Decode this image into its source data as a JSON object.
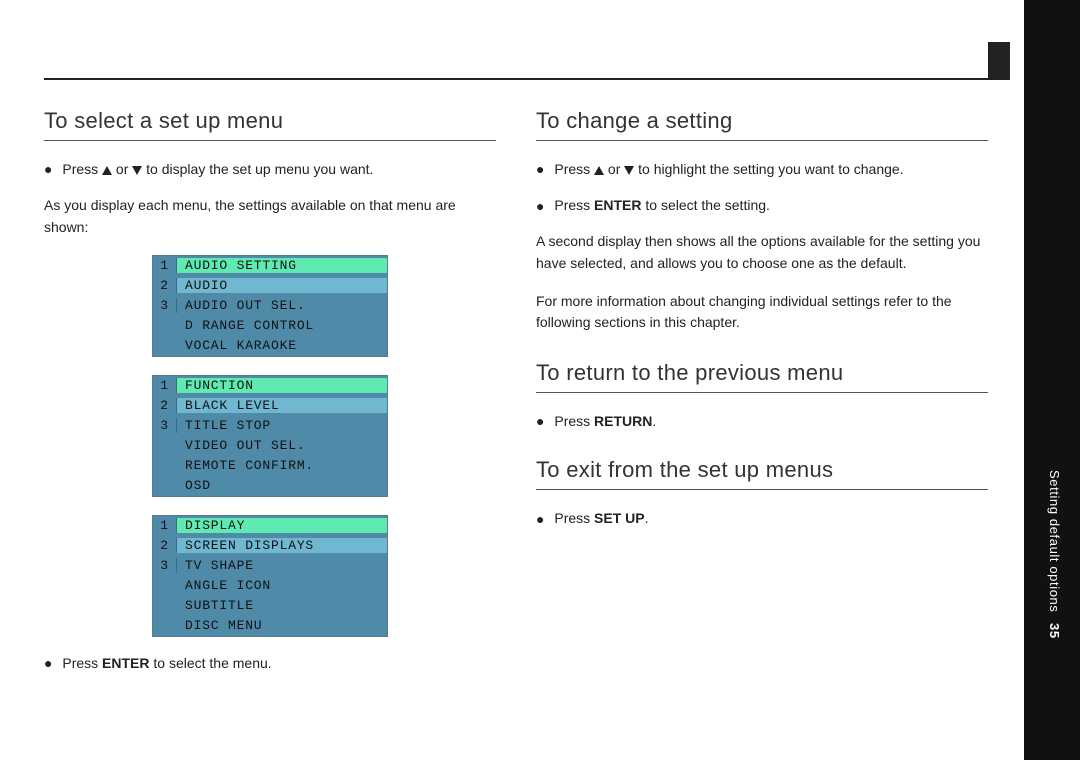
{
  "page_number": "35",
  "side_label_strong": "Setting default options",
  "left": {
    "h_select": "To select a set up menu",
    "p_press_display": " to display the set up menu you want.",
    "p_as_you": "As you display each menu, the settings available on that menu are shown:",
    "p_press_enter_menu_a": "Press ",
    "p_press_enter_menu_b": " to select the menu.",
    "screens": [
      {
        "header_bg": "hi",
        "rows": [
          {
            "n": "1",
            "t": "AUDIO SETTING",
            "bg": "hi",
            "nbg": "mid"
          },
          {
            "n": "2",
            "t": "AUDIO",
            "bg": "mid",
            "nbg": "mid"
          },
          {
            "n": "3",
            "t": "AUDIO OUT SEL.",
            "bg": "",
            "nbg": ""
          },
          {
            "n": "",
            "t": "D RANGE CONTROL",
            "bg": "",
            "nbg": ""
          },
          {
            "n": "",
            "t": "VOCAL KARAOKE",
            "bg": "",
            "nbg": ""
          }
        ]
      },
      {
        "header_bg": "hi",
        "rows": [
          {
            "n": "1",
            "t": "FUNCTION",
            "bg": "hi",
            "nbg": "mid"
          },
          {
            "n": "2",
            "t": "BLACK LEVEL",
            "bg": "mid",
            "nbg": "mid"
          },
          {
            "n": "3",
            "t": "TITLE STOP",
            "bg": "",
            "nbg": ""
          },
          {
            "n": "",
            "t": "VIDEO OUT SEL.",
            "bg": "",
            "nbg": ""
          },
          {
            "n": "",
            "t": "REMOTE CONFIRM.",
            "bg": "",
            "nbg": ""
          },
          {
            "n": "",
            "t": "OSD",
            "bg": "",
            "nbg": ""
          }
        ]
      },
      {
        "header_bg": "hi",
        "rows": [
          {
            "n": "1",
            "t": "DISPLAY",
            "bg": "hi",
            "nbg": "mid"
          },
          {
            "n": "2",
            "t": "SCREEN DISPLAYS",
            "bg": "mid",
            "nbg": "mid"
          },
          {
            "n": "3",
            "t": "TV SHAPE",
            "bg": "",
            "nbg": "mid"
          },
          {
            "n": "",
            "t": "ANGLE ICON",
            "bg": "",
            "nbg": ""
          },
          {
            "n": "",
            "t": "SUBTITLE",
            "bg": "",
            "nbg": ""
          },
          {
            "n": "",
            "t": "DISC MENU",
            "bg": "",
            "nbg": ""
          }
        ]
      }
    ]
  },
  "right": {
    "h_change": "To change a setting",
    "p_press_highlight": " to highlight the setting you want to change.",
    "p_press_enter_setting_a": "Press ",
    "p_press_enter_setting_b": " to select the setting.",
    "p_second": "A second display then shows all the options available for the setting you have selected, and allows you to choose one as the default.",
    "p_moreinfo": "For more information about changing individual settings refer to the following sections in this chapter.",
    "h_return": "To return to the previous menu",
    "p_press_return_a": "Press ",
    "h_exit": "To exit from the set up menus",
    "p_press_setup_a": "Press "
  },
  "words": {
    "press": "Press ",
    "or": " or ",
    "enter": "ENTER",
    "return": "RETURN",
    "setup": "SET UP",
    "period": "."
  },
  "colors": {
    "screen_bg": "#4f8aa8",
    "screen_hi": "#5eeab0",
    "screen_mid": "#6fb8cf"
  }
}
